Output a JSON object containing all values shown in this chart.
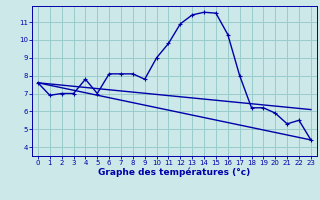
{
  "xlabel": "Graphe des températures (°c)",
  "bg_color": "#cce8e8",
  "line_color": "#0000aa",
  "grid_color": "#99cccc",
  "xlim": [
    -0.5,
    23.5
  ],
  "ylim": [
    3.5,
    11.9
  ],
  "xticks": [
    0,
    1,
    2,
    3,
    4,
    5,
    6,
    7,
    8,
    9,
    10,
    11,
    12,
    13,
    14,
    15,
    16,
    17,
    18,
    19,
    20,
    21,
    22,
    23
  ],
  "yticks": [
    4,
    5,
    6,
    7,
    8,
    9,
    10,
    11
  ],
  "line1_x": [
    0,
    1,
    2,
    3,
    4,
    5,
    6,
    7,
    8,
    9,
    10,
    11,
    12,
    13,
    14,
    15,
    16,
    17,
    18,
    19,
    20,
    21,
    22,
    23
  ],
  "line1_y": [
    7.6,
    6.9,
    7.0,
    7.0,
    7.8,
    7.0,
    8.1,
    8.1,
    8.1,
    7.8,
    9.0,
    9.8,
    10.9,
    11.4,
    11.55,
    11.5,
    10.3,
    8.0,
    6.2,
    6.2,
    5.9,
    5.3,
    5.5,
    4.4
  ],
  "line2_x": [
    0,
    23
  ],
  "line2_y": [
    7.6,
    6.1
  ],
  "line3_x": [
    0,
    23
  ],
  "line3_y": [
    7.6,
    4.4
  ],
  "xlabel_fontsize": 6.5,
  "tick_fontsize": 5.0,
  "marker_size": 3.5,
  "linewidth": 1.0
}
